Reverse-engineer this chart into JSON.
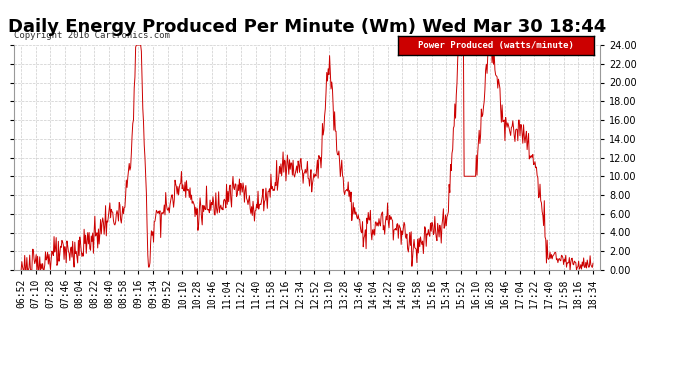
{
  "title": "Daily Energy Produced Per Minute (Wm) Wed Mar 30 18:44",
  "copyright": "Copyright 2016 Cartronics.com",
  "legend_label": "Power Produced (watts/minute)",
  "legend_bg": "#cc0000",
  "legend_fg": "#ffffff",
  "ylim": [
    0,
    24
  ],
  "yticks": [
    0,
    2,
    4,
    6,
    8,
    10,
    12,
    14,
    16,
    18,
    20,
    22,
    24
  ],
  "plot_bg": "#ffffff",
  "fig_bg": "#ffffff",
  "line_color": "#cc0000",
  "title_fontsize": 13,
  "axis_fontsize": 7,
  "x_labels": [
    "06:52",
    "07:10",
    "07:28",
    "07:46",
    "08:04",
    "08:22",
    "08:40",
    "08:58",
    "09:16",
    "09:34",
    "09:52",
    "10:10",
    "10:28",
    "10:46",
    "11:04",
    "11:22",
    "11:40",
    "11:58",
    "12:16",
    "12:34",
    "12:52",
    "13:10",
    "13:28",
    "13:46",
    "14:04",
    "14:22",
    "14:40",
    "14:58",
    "15:16",
    "15:34",
    "15:52",
    "16:10",
    "16:28",
    "16:46",
    "17:04",
    "17:22",
    "17:40",
    "17:58",
    "18:16",
    "18:34"
  ],
  "key_values": [
    0.2,
    0.5,
    1.5,
    2.0,
    2.2,
    3.5,
    5.8,
    6.0,
    20.5,
    6.2,
    6.8,
    9.8,
    6.2,
    6.5,
    8.0,
    8.5,
    6.5,
    8.5,
    11.5,
    11.0,
    9.5,
    16.0,
    9.5,
    4.5,
    4.5,
    5.5,
    3.5,
    2.5,
    4.0,
    4.5,
    24.0,
    10.5,
    19.5,
    14.5,
    15.0,
    12.0,
    1.0,
    1.5,
    1.8,
    0.5
  ]
}
